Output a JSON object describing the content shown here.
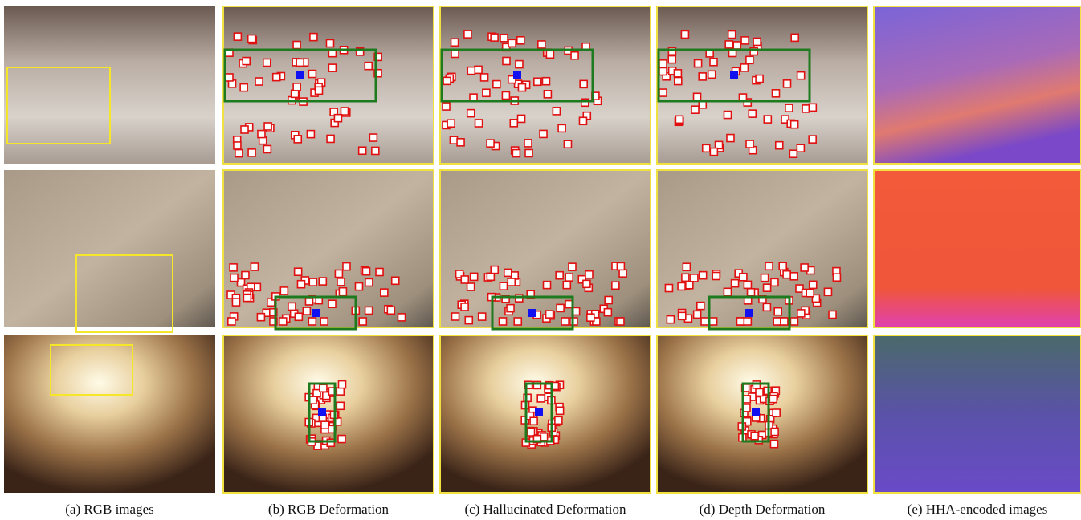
{
  "captions": [
    "(a) RGB images",
    "(b) RGB Deformation",
    "(c) Hallucinated Deformation",
    "(d) Depth Deformation",
    "(e) HHA-encoded images"
  ]
}
